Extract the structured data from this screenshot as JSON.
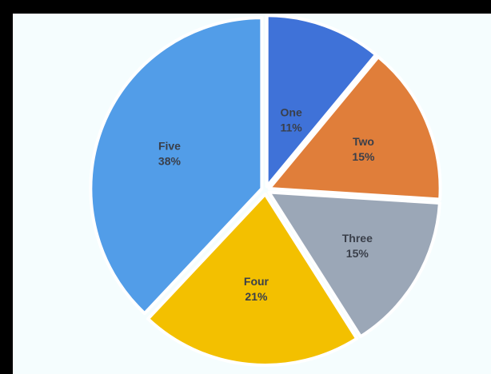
{
  "chart_data": {
    "type": "pie",
    "title": "",
    "legend": "none",
    "categories": [
      "One",
      "Two",
      "Three",
      "Four",
      "Five"
    ],
    "values": [
      11,
      15,
      15,
      21,
      38
    ],
    "data_labels": [
      "11%",
      "15%",
      "15%",
      "21%",
      "38%"
    ],
    "colors": [
      "#3f72d8",
      "#e07e3a",
      "#9ba7b7",
      "#f3c000",
      "#529de8"
    ],
    "exploded": true
  }
}
